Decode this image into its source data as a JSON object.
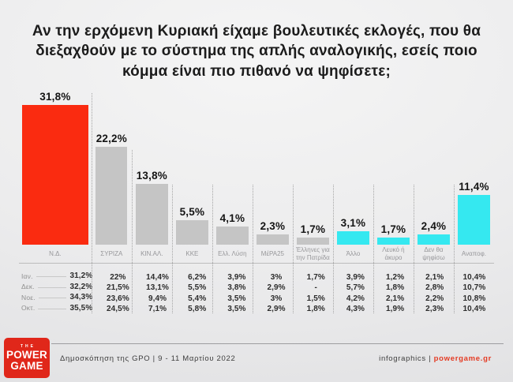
{
  "title": "Αν την ερχόμενη Κυριακή είχαμε βουλευτικές εκλογές, που θα διεξαχθούν με το σύστημα της απλής αναλογικής, εσείς ποιο κόμμα είναι πιο πιθανό να ψηφίσετε;",
  "chart_data": {
    "type": "bar",
    "title": "Αν την ερχόμενη Κυριακή είχαμε βουλευτικές εκλογές, που θα διεξαχθούν με το σύστημα της απλής αναλογικής, εσείς ποιο κόμμα είναι πιο πιθανό να ψηφίσετε;",
    "xlabel": "",
    "ylabel": "",
    "ylim": [
      0,
      35
    ],
    "grid": false,
    "legend": "none",
    "categories": [
      "Ν.Δ.",
      "ΣΥΡΙΖΑ",
      "ΚΙΝ.ΑΛ.",
      "ΚΚΕ",
      "Ελλ. Λύση",
      "ΜέΡΑ25",
      "Έλληνες για την Πατρίδα",
      "Άλλο",
      "Λευκό ή άκυρο",
      "Δεν θα ψηφίσω",
      "Αναποφ."
    ],
    "values": [
      31.8,
      22.2,
      13.8,
      5.5,
      4.1,
      2.3,
      1.7,
      3.1,
      1.7,
      2.4,
      11.4
    ],
    "value_labels": [
      "31,8%",
      "22,2%",
      "13,8%",
      "5,5%",
      "4,1%",
      "2,3%",
      "1,7%",
      "3,1%",
      "1,7%",
      "2,4%",
      "11,4%"
    ],
    "bar_colors": [
      "#fa2b10",
      "#c5c5c5",
      "#c5c5c5",
      "#c5c5c5",
      "#c5c5c5",
      "#c5c5c5",
      "#c5c5c5",
      "#35e8f0",
      "#35e8f0",
      "#35e8f0",
      "#35e8f0"
    ],
    "history_table": {
      "row_labels": [
        "Ιαν.",
        "Δεκ.",
        "Νοε.",
        "Οκτ."
      ],
      "rows": [
        [
          "31,2%",
          "22%",
          "14,4%",
          "6,2%",
          "3,9%",
          "3%",
          "1,7%",
          "3,9%",
          "1,2%",
          "2,1%",
          "10,4%"
        ],
        [
          "32,2%",
          "21,5%",
          "13,1%",
          "5,5%",
          "3,8%",
          "2,9%",
          "-",
          "5,7%",
          "1,8%",
          "2,8%",
          "10,7%"
        ],
        [
          "34,3%",
          "23,6%",
          "9,4%",
          "5,4%",
          "3,5%",
          "3%",
          "1,5%",
          "4,2%",
          "2,1%",
          "2,2%",
          "10,8%"
        ],
        [
          "35,5%",
          "24,5%",
          "7,1%",
          "5,8%",
          "3,5%",
          "2,9%",
          "1,8%",
          "4,3%",
          "1,9%",
          "2,3%",
          "10,4%"
        ]
      ]
    }
  },
  "footer": {
    "logo": {
      "line1": "THE",
      "line2": "POWER",
      "line3": "GAME",
      "bg_color": "#e0271a"
    },
    "source": "Δημοσκόπηση της GPO | 9 - 11 Μαρτίου 2022",
    "credit_prefix": "infographics | ",
    "credit_brand": "powergame.gr"
  },
  "colors": {
    "bar_red": "#fa2b10",
    "bar_gray": "#c5c5c5",
    "bar_cyan": "#35e8f0",
    "accent_red": "#e43a22",
    "separator_gray": "#a5a5a5"
  }
}
